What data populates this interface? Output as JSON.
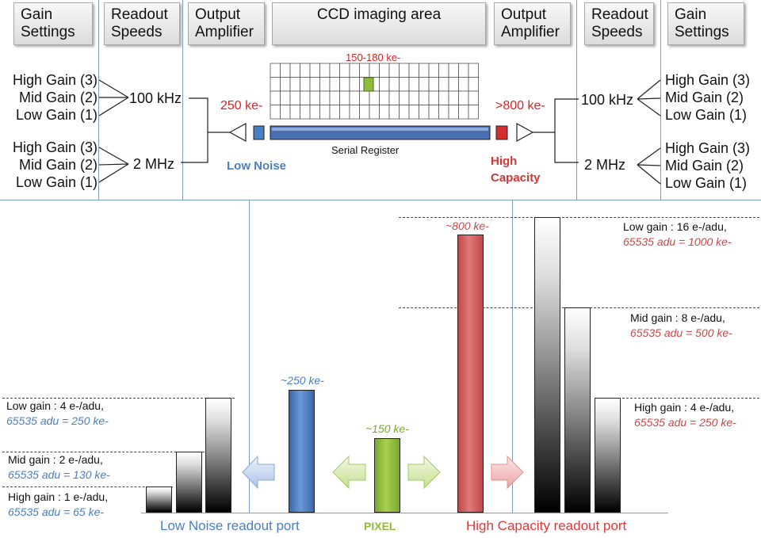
{
  "header": {
    "left_gain": "Gain Settings",
    "left_readout": "Readout Speeds",
    "left_amp": "Output Amplifier",
    "center": "CCD imaging area",
    "right_amp": "Output Amplifier",
    "right_readout": "Readout Speeds",
    "right_gain": "Gain Settings"
  },
  "left_gain_group1": [
    "High Gain (3)",
    "Mid Gain (2)",
    "Low Gain (1)"
  ],
  "left_gain_group2": [
    "High Gain (3)",
    "Mid Gain (2)",
    "Low Gain (1)"
  ],
  "right_gain_group1": [
    "High Gain (3)",
    "Mid Gain (2)",
    "Low Gain (1)"
  ],
  "right_gain_group2": [
    "High Gain (3)",
    "Mid Gain (2)",
    "Low Gain (1)"
  ],
  "speeds": {
    "fast_left": "100 kHz",
    "slow_left": "2 MHz",
    "fast_right": "100 kHz",
    "slow_right": "2 MHz"
  },
  "ccd": {
    "pixel_capacity": "150-180 ke-",
    "left_capacity": "250  ke-",
    "right_capacity": ">800 ke-",
    "serial_register": "Serial Register",
    "low_noise": "Low Noise",
    "high_capacity_1": "High",
    "high_capacity_2": "Capacity"
  },
  "lower": {
    "low_noise_label": "~250 ke-",
    "pixel_label": "~150 ke-",
    "high_cap_label": "~800 ke-",
    "left_low": "Low gain : 4 e-/adu,",
    "left_low_adu": "65535 adu = 250 ke-",
    "left_mid": "Mid gain : 2 e-/adu,",
    "left_mid_adu": "65535 adu = 130 ke-",
    "left_high": "High gain : 1 e-/adu,",
    "left_high_adu": "65535 adu = 65 ke-",
    "right_low": "Low gain : 16 e-/adu,",
    "right_low_adu": "65535 adu = 1000 ke-",
    "right_mid": "Mid gain : 8 e-/adu,",
    "right_mid_adu": "65535 adu = 500 ke-",
    "right_high": "High gain : 4 e-/adu,",
    "right_high_adu": "65535 adu = 250 ke-",
    "port_low_noise": "Low Noise readout port",
    "port_pixel": "PIXEL",
    "port_high_cap": "High Capacity readout port"
  },
  "colors": {
    "low_noise_blue": "#4a7ec4",
    "pixel_green": "#8fbc3a",
    "high_cap_red": "#d65a5a",
    "label_red": "#e02020"
  }
}
